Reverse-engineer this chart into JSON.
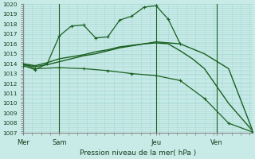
{
  "title": "Pression niveau de la mer( hPa )",
  "background_color": "#c8ebe8",
  "grid_color": "#a8d8d4",
  "line_color": "#1a6020",
  "ylim": [
    1007,
    1020
  ],
  "yticks": [
    1007,
    1008,
    1009,
    1010,
    1011,
    1012,
    1013,
    1014,
    1015,
    1016,
    1017,
    1018,
    1019,
    1020
  ],
  "xtick_labels": [
    "Mer",
    "Sam",
    "Jeu",
    "Ven"
  ],
  "xtick_positions": [
    0,
    3,
    11,
    16
  ],
  "vline_positions": [
    0,
    3,
    11,
    16
  ],
  "series1_x": [
    0,
    1,
    2,
    3,
    4,
    5,
    6,
    7,
    8,
    9,
    10,
    11,
    12,
    13
  ],
  "series1_y": [
    1013.8,
    1013.4,
    1014.0,
    1016.8,
    1017.8,
    1017.9,
    1016.6,
    1016.7,
    1018.4,
    1018.8,
    1019.7,
    1019.85,
    1018.5,
    1016.0
  ],
  "series2_x": [
    0,
    1,
    2,
    3,
    4,
    5,
    6,
    7,
    8,
    9,
    10,
    11,
    12,
    13,
    14,
    15,
    17,
    19
  ],
  "series2_y": [
    1013.9,
    1013.7,
    1013.9,
    1014.2,
    1014.5,
    1014.8,
    1015.0,
    1015.3,
    1015.6,
    1015.8,
    1016.0,
    1016.2,
    1016.1,
    1016.0,
    1015.5,
    1015.0,
    1013.5,
    1007.2
  ],
  "series3_x": [
    0,
    1,
    2,
    3,
    4,
    5,
    6,
    7,
    8,
    9,
    10,
    11,
    12,
    13,
    14,
    15,
    17,
    19
  ],
  "series3_y": [
    1014.0,
    1013.8,
    1014.1,
    1014.5,
    1014.7,
    1014.9,
    1015.2,
    1015.4,
    1015.7,
    1015.85,
    1016.0,
    1016.1,
    1016.0,
    1015.3,
    1014.5,
    1013.5,
    1010.0,
    1007.2
  ],
  "series4_x": [
    0,
    1,
    3,
    5,
    7,
    9,
    11,
    13,
    15,
    17,
    19
  ],
  "series4_y": [
    1013.95,
    1013.5,
    1013.6,
    1013.5,
    1013.3,
    1013.0,
    1012.8,
    1012.3,
    1010.5,
    1008.0,
    1007.1
  ]
}
